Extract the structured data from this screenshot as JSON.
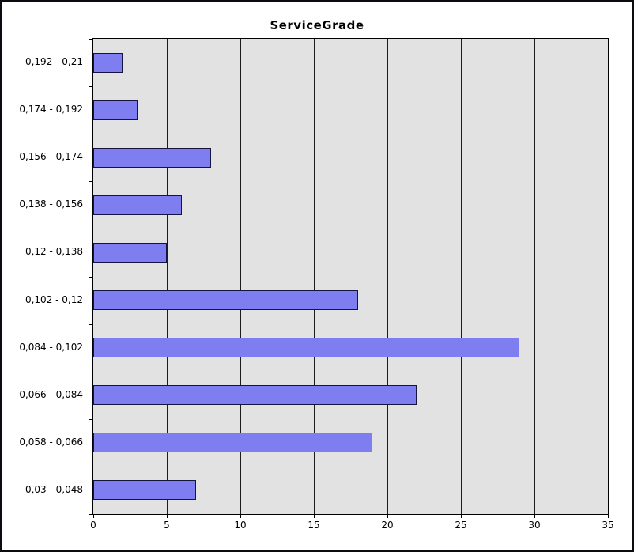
{
  "window": {
    "background_color": "#ffffff",
    "border_color": "#0b0b12"
  },
  "chart_data": {
    "type": "bar",
    "orientation": "horizontal",
    "title": "ServiceGrade",
    "categories": [
      "0,192 - 0,21",
      "0,174 - 0,192",
      "0,156 - 0,174",
      "0,138 - 0,156",
      "0,12 - 0,138",
      "0,102 - 0,12",
      "0,084 - 0,102",
      "0,066 - 0,084",
      "0,058 - 0,066",
      "0,03 - 0,048"
    ],
    "values": [
      2,
      3,
      8,
      6,
      5,
      18,
      29,
      22,
      19,
      7
    ],
    "x_ticks": [
      0,
      5,
      10,
      15,
      20,
      25,
      30,
      35
    ],
    "xlim": [
      0,
      35
    ],
    "categories_order": "top-to-bottom",
    "grid": true,
    "legend": "none",
    "xlabel": "",
    "ylabel": "",
    "colors": {
      "bar_fill": "#7e7ef0",
      "bar_border": "#14143c",
      "plot_background": "#e2e2e2",
      "gridline": "#1c1c1c",
      "axis": "#000000",
      "text": "#000000"
    }
  }
}
